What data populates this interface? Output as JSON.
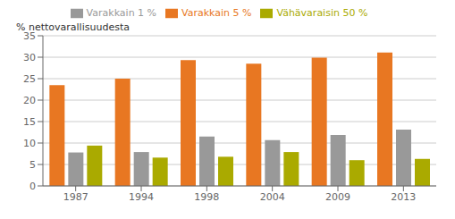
{
  "chart_data": {
    "type": "bar",
    "ylabel": "% nettovarallisuudesta",
    "categories": [
      "1987",
      "1994",
      "1998",
      "2004",
      "2009",
      "2013"
    ],
    "series": [
      {
        "name": "Varakkain 5 %",
        "color": "#E87722",
        "values": [
          23.5,
          25.0,
          29.3,
          28.5,
          29.9,
          31.1
        ]
      },
      {
        "name": "Varakkain 1 %",
        "color": "#999999",
        "values": [
          7.8,
          7.9,
          11.5,
          10.7,
          11.9,
          13.1
        ]
      },
      {
        "name": "Vähävaraisin 50 %",
        "color": "#AAAA00",
        "values": [
          9.4,
          6.6,
          6.8,
          7.9,
          6.0,
          6.3
        ]
      }
    ],
    "ylim": [
      0,
      35
    ],
    "yticks": [
      0,
      5,
      10,
      15,
      20,
      25,
      30,
      35
    ],
    "grid": true,
    "legend": "top"
  }
}
